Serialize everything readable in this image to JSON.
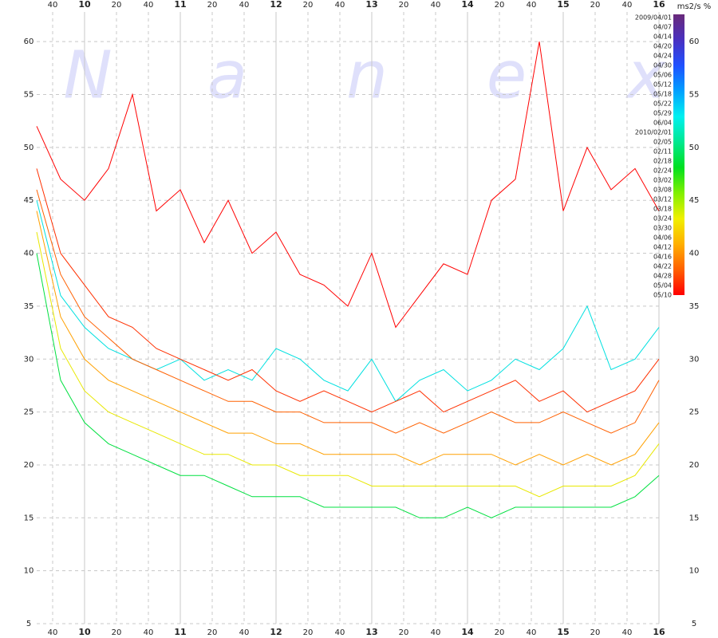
{
  "chart_data": {
    "type": "line",
    "unit_label": "ms2/s %",
    "watermark": [
      "N",
      "a",
      "n",
      "e",
      "x"
    ],
    "x": [
      570,
      585,
      600,
      615,
      630,
      645,
      660,
      675,
      690,
      705,
      720,
      735,
      750,
      765,
      780,
      795,
      810,
      825,
      840,
      855,
      870,
      885,
      900,
      915,
      930,
      945,
      960
    ],
    "xlim": [
      570,
      960
    ],
    "xticks": [
      {
        "value": 580,
        "label": "40"
      },
      {
        "value": 600,
        "label": "10"
      },
      {
        "value": 620,
        "label": "20"
      },
      {
        "value": 640,
        "label": "40"
      },
      {
        "value": 660,
        "label": "11"
      },
      {
        "value": 680,
        "label": "20"
      },
      {
        "value": 700,
        "label": "40"
      },
      {
        "value": 720,
        "label": "12"
      },
      {
        "value": 740,
        "label": "20"
      },
      {
        "value": 760,
        "label": "40"
      },
      {
        "value": 780,
        "label": "13"
      },
      {
        "value": 800,
        "label": "20"
      },
      {
        "value": 820,
        "label": "40"
      },
      {
        "value": 840,
        "label": "14"
      },
      {
        "value": 860,
        "label": "20"
      },
      {
        "value": 880,
        "label": "40"
      },
      {
        "value": 900,
        "label": "15"
      },
      {
        "value": 920,
        "label": "20"
      },
      {
        "value": 940,
        "label": "40"
      },
      {
        "value": 960,
        "label": "16"
      }
    ],
    "ylim": [
      5,
      62.8
    ],
    "yticks": [
      5,
      10,
      15,
      20,
      25,
      30,
      35,
      40,
      45,
      50,
      55,
      60
    ],
    "grid": true,
    "colorbar": {
      "labels": [
        "2009/04/01",
        "04/07",
        "04/14",
        "04/20",
        "04/24",
        "04/30",
        "05/06",
        "05/12",
        "05/18",
        "05/22",
        "05/29",
        "06/04",
        "2010/02/01",
        "02/05",
        "02/11",
        "02/18",
        "02/24",
        "03/02",
        "03/08",
        "03/12",
        "03/18",
        "03/24",
        "03/30",
        "04/06",
        "04/12",
        "04/16",
        "04/22",
        "04/28",
        "05/04",
        "05/10"
      ],
      "colors": [
        "#6a2a7a",
        "#4a30c0",
        "#2050ff",
        "#00a0ff",
        "#00f0f0",
        "#00e890",
        "#00e020",
        "#80f000",
        "#f0f000",
        "#ffb000",
        "#ff6000",
        "#ff0000"
      ]
    },
    "series": [
      {
        "name": "05/12",
        "color": "#00e0e0",
        "values": [
          45,
          36,
          33,
          31,
          30,
          29,
          30,
          28,
          29,
          28,
          31,
          30,
          28,
          27,
          30,
          26,
          28,
          29,
          27,
          28,
          30,
          29,
          31,
          35,
          29,
          30,
          33
        ]
      },
      {
        "name": "03/02",
        "color": "#00e040",
        "values": [
          40,
          28,
          24,
          22,
          21,
          20,
          19,
          19,
          18,
          17,
          17,
          17,
          16,
          16,
          16,
          16,
          15,
          15,
          16,
          15,
          16,
          16,
          16,
          16,
          16,
          17,
          19
        ]
      },
      {
        "name": "03/24",
        "color": "#e8e800",
        "values": [
          42,
          31,
          27,
          25,
          24,
          23,
          22,
          21,
          21,
          20,
          20,
          19,
          19,
          19,
          18,
          18,
          18,
          18,
          18,
          18,
          18,
          17,
          18,
          18,
          18,
          19,
          22
        ]
      },
      {
        "name": "04/06",
        "color": "#ffa000",
        "values": [
          44,
          34,
          30,
          28,
          27,
          26,
          25,
          24,
          23,
          23,
          22,
          22,
          21,
          21,
          21,
          21,
          20,
          21,
          21,
          21,
          20,
          21,
          20,
          21,
          20,
          21,
          24
        ]
      },
      {
        "name": "04/22",
        "color": "#ff6000",
        "values": [
          46,
          38,
          34,
          32,
          30,
          29,
          28,
          27,
          26,
          26,
          25,
          25,
          24,
          24,
          24,
          23,
          24,
          23,
          24,
          25,
          24,
          24,
          25,
          24,
          23,
          24,
          28
        ]
      },
      {
        "name": "05/04",
        "color": "#ff3000",
        "values": [
          48,
          40,
          37,
          34,
          33,
          31,
          30,
          29,
          28,
          29,
          27,
          26,
          27,
          26,
          25,
          26,
          27,
          25,
          26,
          27,
          28,
          26,
          27,
          25,
          26,
          27,
          30
        ]
      },
      {
        "name": "05/10",
        "color": "#ff0000",
        "values": [
          52,
          47,
          45,
          48,
          55,
          44,
          46,
          41,
          45,
          40,
          42,
          38,
          37,
          35,
          40,
          33,
          36,
          39,
          38,
          45,
          47,
          60,
          44,
          50,
          46,
          48,
          44
        ]
      }
    ]
  }
}
